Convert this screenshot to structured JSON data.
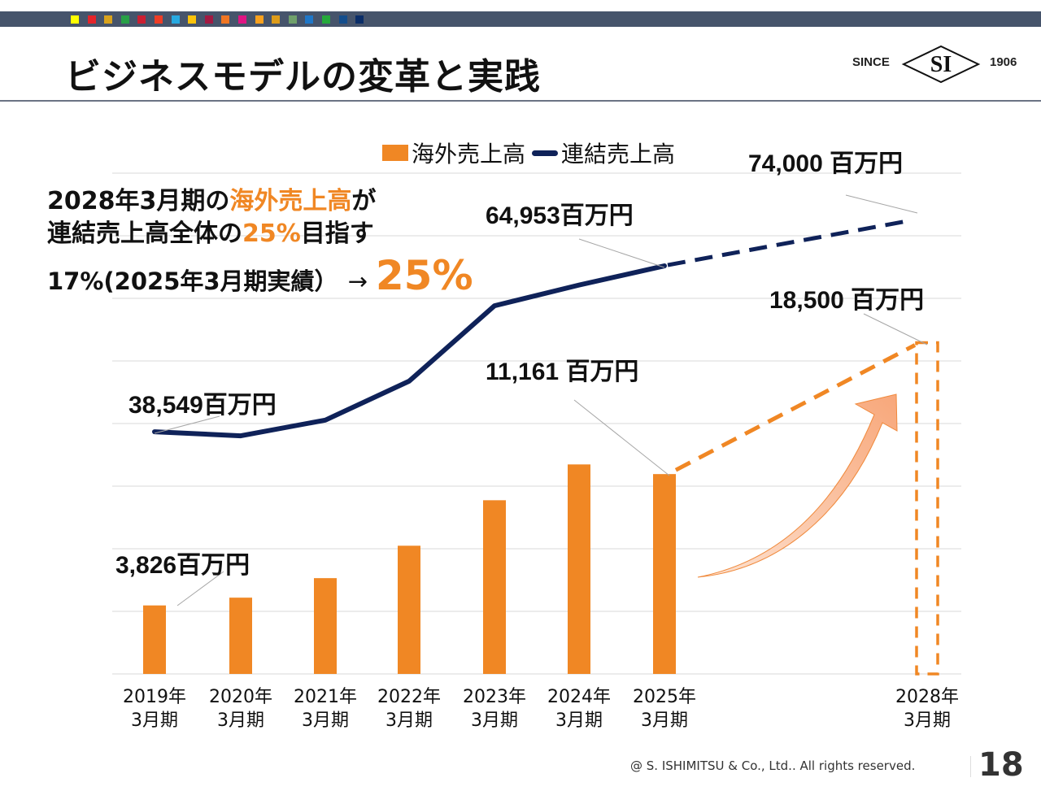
{
  "header": {
    "title": "ビジネスモデルの変革と実践",
    "color_squares": [
      "#ffff00",
      "#e5242a",
      "#d9a31c",
      "#28a047",
      "#cc1f32",
      "#ee3d26",
      "#27a9e1",
      "#fbc30a",
      "#a21942",
      "#f07623",
      "#e01483",
      "#f9a11e",
      "#dd9c1a",
      "#6fa06b",
      "#1f77c8",
      "#25a93b",
      "#134d8c",
      "#0a2d68"
    ],
    "logo": {
      "since": "SINCE",
      "mark": "SI",
      "year": "1906"
    }
  },
  "annotation": {
    "line1_prefix": "2028年3月期の",
    "line1_highlight": "海外売上高",
    "line1_suffix": "が",
    "line2_prefix": "連結売上高全体の",
    "line2_highlight": "25%",
    "line2_suffix": "目指す",
    "line3_text": "17%(2025年3月期実績）",
    "line3_arrow": "→",
    "line3_highlight": "25%"
  },
  "chart_data": {
    "type": "bar",
    "title": "",
    "categories": [
      "2019年3月期",
      "2020年3月期",
      "2021年3月期",
      "2022年3月期",
      "2023年3月期",
      "2024年3月期",
      "2025年3月期",
      "2028年3月期"
    ],
    "category_lines": [
      [
        "2019年",
        "3月期"
      ],
      [
        "2020年",
        "3月期"
      ],
      [
        "2021年",
        "3月期"
      ],
      [
        "2022年",
        "3月期"
      ],
      [
        "2023年",
        "3月期"
      ],
      [
        "2024年",
        "3月期"
      ],
      [
        "2025年",
        "3月期"
      ],
      [
        "2028年",
        "3月期"
      ]
    ],
    "series": [
      {
        "name": "海外売上高",
        "type": "bar",
        "color": "#f08724",
        "values": [
          3826,
          4260,
          5350,
          7160,
          9700,
          11700,
          11161,
          null
        ],
        "target": {
          "category": "2028年3月期",
          "value": 18500,
          "style": "dashed"
        }
      },
      {
        "name": "連結売上高",
        "type": "line",
        "color": "#0f2259",
        "values": [
          38549,
          37900,
          40400,
          46600,
          58600,
          61900,
          64953,
          null
        ],
        "target": {
          "category": "2028年3月期",
          "value": 74000,
          "style": "dashed"
        }
      }
    ],
    "data_labels": [
      {
        "series": "海外売上高",
        "category": "2019年3月期",
        "text": "3,826百万円"
      },
      {
        "series": "海外売上高",
        "category": "2025年3月期",
        "text": "11,161 百万円"
      },
      {
        "series": "海外売上高",
        "category": "2028年3月期",
        "text": "18,500 百万円"
      },
      {
        "series": "連結売上高",
        "category": "2019年3月期",
        "text": "38,549百万円"
      },
      {
        "series": "連結売上高",
        "category": "2025年3月期",
        "text": "64,953百万円"
      },
      {
        "series": "連結売上高",
        "category": "2028年3月期",
        "text": "74,000 百万円"
      }
    ],
    "legend": {
      "position": "top",
      "entries": [
        "海外売上高",
        "連結売上高"
      ]
    },
    "xlabel": "",
    "ylabel": "",
    "grid": true,
    "units": "百万円"
  },
  "footer": {
    "copyright": "@ S. ISHIMITSU & Co., Ltd.. All rights reserved.",
    "page": "18"
  }
}
